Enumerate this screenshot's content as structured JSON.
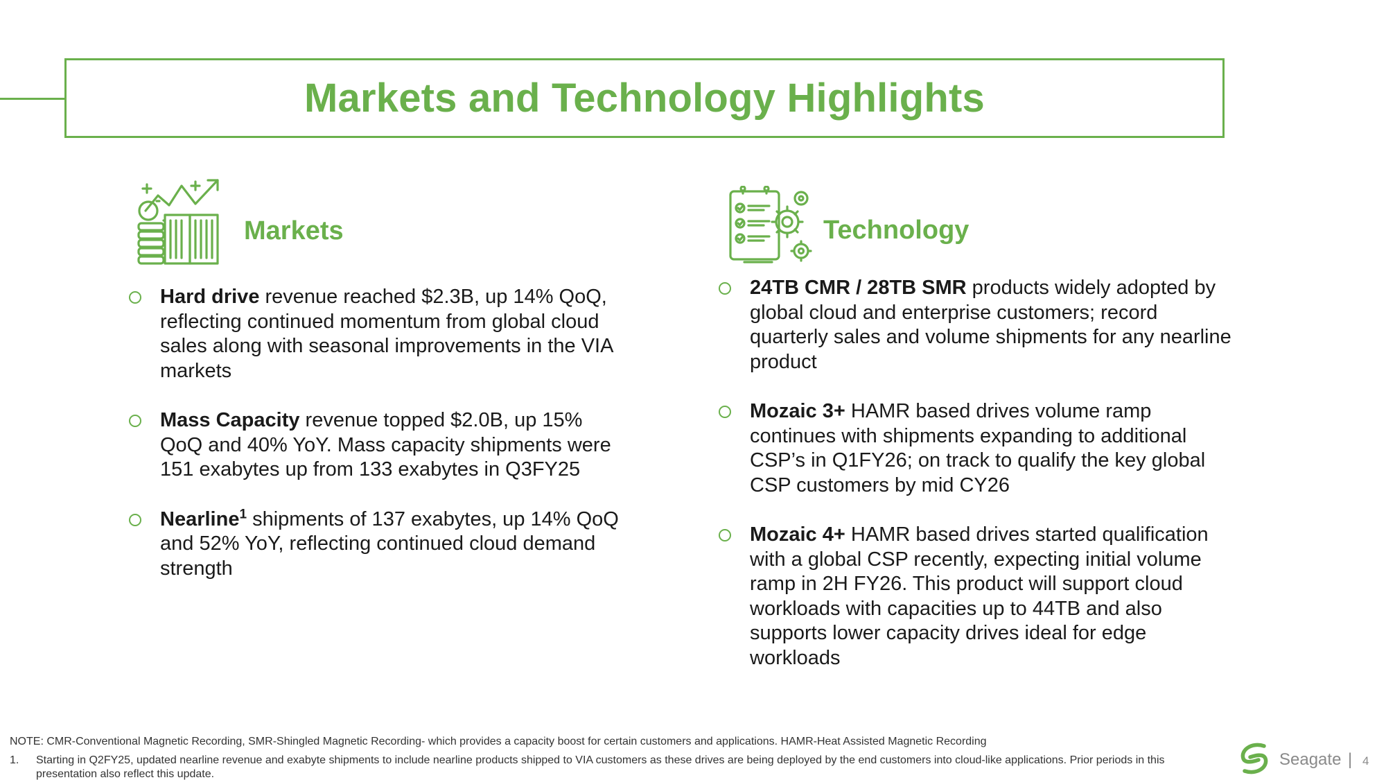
{
  "title": "Markets and Technology Highlights",
  "colors": {
    "accent": "#6ab04c",
    "text": "#1a1a1a",
    "muted": "#8a8a8a"
  },
  "markets": {
    "heading": "Markets",
    "icon": "growth-chart-coins-icon",
    "bullets": [
      {
        "bold": "Hard drive",
        "text": " revenue reached $2.3B, up 14% QoQ, reflecting continued momentum from global cloud sales along with seasonal improvements in the VIA markets"
      },
      {
        "bold": "Mass Capacity",
        "text": " revenue topped $2.0B, up 15% QoQ and 40% YoY. Mass capacity shipments were 151 exabytes up from 133 exabytes in Q3FY25"
      },
      {
        "bold": "Nearline",
        "sup": "1",
        "text": " shipments of 137 exabytes, up 14% QoQ and 52% YoY, reflecting continued cloud demand strength"
      }
    ]
  },
  "technology": {
    "heading": "Technology",
    "icon": "checklist-gears-icon",
    "bullets": [
      {
        "bold": "24TB CMR / 28TB SMR",
        "text": " products widely adopted by global cloud and enterprise customers; record quarterly sales and volume shipments for any nearline product"
      },
      {
        "bold": "Mozaic 3+",
        "text": " HAMR based drives volume ramp continues with shipments expanding to additional CSP’s in Q1FY26; on track to qualify the key global CSP customers by mid CY26"
      },
      {
        "bold": "Mozaic 4+",
        "text": " HAMR based drives started qualification with a global CSP recently, expecting initial volume ramp in 2H FY26. This product will support cloud workloads with capacities up to 44TB and also supports lower capacity drives ideal for edge workloads"
      }
    ]
  },
  "note": "NOTE: CMR-Conventional Magnetic Recording, SMR-Shingled Magnetic Recording- which provides a capacity boost for certain customers and applications. HAMR-Heat Assisted Magnetic Recording",
  "footnote": {
    "number": "1.",
    "text": "Starting in Q2FY25, updated nearline revenue and exabyte shipments to include nearline products shipped to VIA customers as these drives are being deployed by the end customers into cloud-like applications. Prior periods in this presentation also reflect this update."
  },
  "footer": {
    "brand": "Seagate",
    "separator": "|",
    "page": "4"
  }
}
